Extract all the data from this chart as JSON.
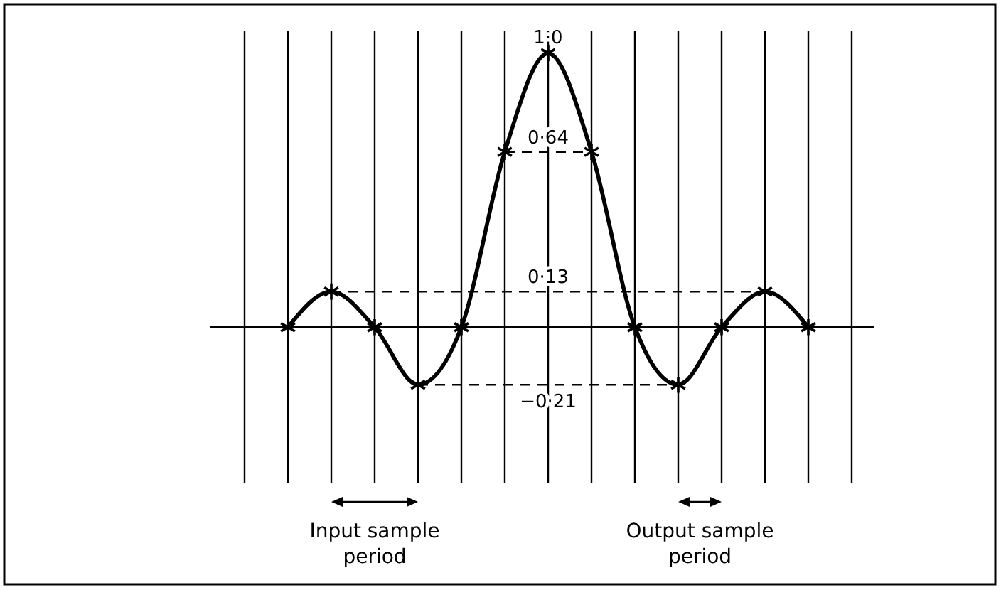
{
  "chart_data": {
    "type": "line",
    "ylim": [
      -0.57,
      1.08
    ],
    "categories": [
      null,
      null,
      null,
      null,
      null,
      null,
      null,
      null,
      null,
      null,
      null,
      null,
      null,
      null,
      null
    ],
    "series": [
      {
        "color": "#000000",
        "values": [
          null,
          0,
          0.13,
          0,
          -0.21,
          0,
          0.64,
          1.0,
          0.64,
          0,
          -0.21,
          0,
          0.13,
          0,
          null
        ],
        "value_labels": [
          null,
          null,
          null,
          null,
          null,
          null,
          null,
          "1·0",
          null,
          null,
          null,
          null,
          null,
          null,
          null
        ]
      }
    ],
    "grid": "x",
    "marker": "cross",
    "line_style": "solid",
    "ref_lines": [
      {
        "axis": "y",
        "value": 0.64,
        "label": "0·64",
        "line_style": "dashed"
      },
      {
        "axis": "y",
        "value": 0.13,
        "label": "0·13",
        "line_style": "dashed"
      },
      {
        "axis": "y",
        "value": -0.21,
        "label": "−0·21",
        "line_style": "dashed"
      }
    ],
    "annotations": [
      "Input sample period",
      "Output sample period"
    ]
  }
}
